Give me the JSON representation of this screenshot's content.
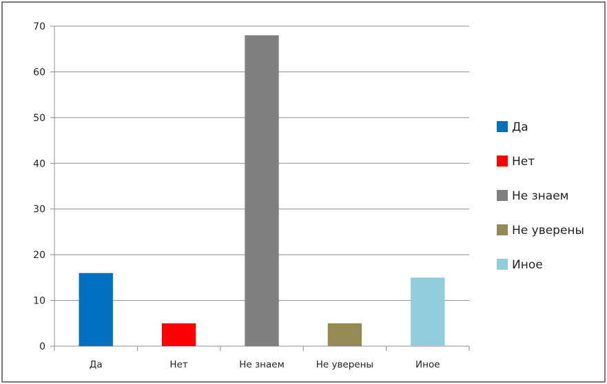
{
  "chart_data": {
    "type": "bar",
    "categories": [
      "Да",
      "Нет",
      "Не знаем",
      "Не уверены",
      "Иное"
    ],
    "values": [
      16,
      5,
      68,
      5,
      15
    ],
    "colors": [
      "#0070c0",
      "#ff0000",
      "#7f7f7f",
      "#948a54",
      "#92cddc"
    ],
    "legend": {
      "position": "right",
      "entries": [
        "Да",
        "Нет",
        "Не знаем",
        "Не уверены",
        "Иное"
      ]
    },
    "ylim": [
      0,
      70
    ],
    "yticks": [
      0,
      10,
      20,
      30,
      40,
      50,
      60,
      70
    ],
    "grid": true,
    "title": "",
    "xlabel": "",
    "ylabel": ""
  }
}
